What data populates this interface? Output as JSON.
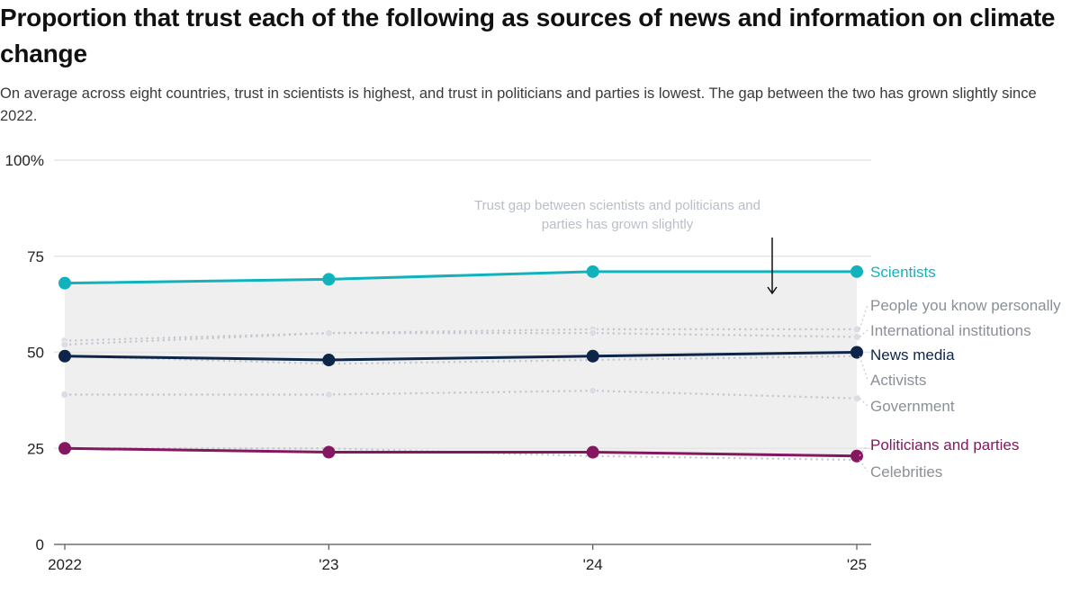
{
  "header": {
    "title": "Proportion that trust each of the following as sources of news and information on climate change",
    "subtitle": "On average across eight countries, trust in scientists is highest, and trust in politicians and parties is lowest. The gap between the two has grown slightly since 2022."
  },
  "chart_data": {
    "type": "line",
    "title": "Proportion that trust each of the following as sources of news and information on climate change",
    "subtitle": "On average across eight countries, trust in scientists is highest, and trust in politicians and parties is lowest. The gap between the two has grown slightly since 2022.",
    "xlabel": "",
    "ylabel": "",
    "x": [
      "2022",
      "'23",
      "'24",
      "'25"
    ],
    "ylim": [
      0,
      100
    ],
    "yticks": [
      0,
      25,
      50,
      75,
      100
    ],
    "ytick_labels": [
      "0",
      "25",
      "50",
      "75",
      "100%"
    ],
    "grid": true,
    "legend": "direct labels at right end of lines",
    "series": [
      {
        "name": "Scientists",
        "values": [
          68,
          69,
          71,
          71
        ],
        "color": "#12b2bd",
        "style": "solid",
        "highlight": true
      },
      {
        "name": "People you know personally",
        "values": [
          53,
          55,
          56,
          56
        ],
        "color": "#c4c8d0",
        "style": "dotted",
        "highlight": false
      },
      {
        "name": "International institutions",
        "values": [
          52,
          55,
          55,
          54
        ],
        "color": "#c4c8d0",
        "style": "dotted",
        "highlight": false
      },
      {
        "name": "News media",
        "values": [
          49,
          48,
          49,
          50
        ],
        "color": "#0c2548",
        "style": "solid",
        "highlight": true
      },
      {
        "name": "Activists",
        "values": [
          49,
          47,
          48,
          49
        ],
        "color": "#c4c8d0",
        "style": "dotted",
        "highlight": false
      },
      {
        "name": "Government",
        "values": [
          39,
          39,
          40,
          38
        ],
        "color": "#c4c8d0",
        "style": "dotted",
        "highlight": false
      },
      {
        "name": "Politicians and parties",
        "values": [
          25,
          24,
          24,
          23
        ],
        "color": "#84175f",
        "style": "solid",
        "highlight": true
      },
      {
        "name": "Celebrities",
        "values": [
          25,
          25,
          23,
          22
        ],
        "color": "#c4c8d0",
        "style": "dotted",
        "highlight": false
      }
    ],
    "shaded_band": {
      "between": [
        "Scientists",
        "Politicians and parties"
      ],
      "color": "#efefef"
    },
    "annotations": [
      {
        "text_lines": [
          "Trust gap between scientists and politicians and",
          "parties has grown slightly"
        ],
        "arrow": "down",
        "points_to_year": "'25"
      }
    ]
  }
}
